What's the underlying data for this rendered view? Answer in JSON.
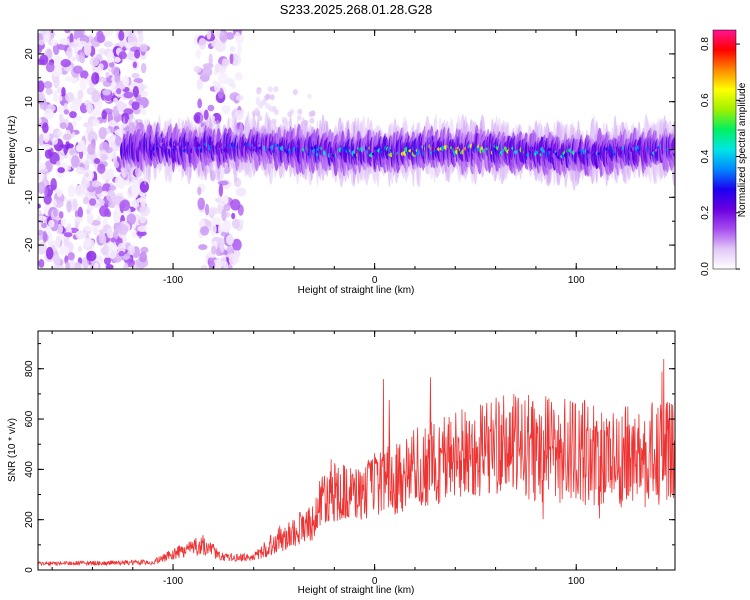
{
  "figure": {
    "title": "S233.2025.268.01.28.G28"
  },
  "chart_data": [
    {
      "type": "heatmap",
      "title": "S233.2025.268.01.28.G28",
      "xlabel": "Height of straight line (km)",
      "ylabel": "Frequency (Hz)",
      "xlim": [
        -167,
        149
      ],
      "ylim": [
        -25,
        25
      ],
      "x_ticks": [
        -100,
        0,
        100
      ],
      "x_tick_labels": [
        "-100",
        "0",
        "100"
      ],
      "y_ticks": [
        -20,
        -10,
        0,
        10,
        20
      ],
      "y_tick_labels": [
        "-20",
        "-10",
        "0",
        "10",
        "20"
      ],
      "ridge": {
        "description_points": [
          {
            "x": -120,
            "freq": 0,
            "amp": 0.25
          },
          {
            "x": -100,
            "freq": 0.5,
            "amp": 0.35
          },
          {
            "x": -60,
            "freq": 0.5,
            "amp": 0.4
          },
          {
            "x": -20,
            "freq": -0.5,
            "amp": 0.55
          },
          {
            "x": 0,
            "freq": -0.5,
            "amp": 0.6
          },
          {
            "x": 30,
            "freq": 0,
            "amp": 0.8
          },
          {
            "x": 60,
            "freq": 0,
            "amp": 0.65
          },
          {
            "x": 100,
            "freq": -1,
            "amp": 0.5
          },
          {
            "x": 140,
            "freq": 0,
            "amp": 0.4
          }
        ]
      },
      "colorbar": {
        "label": "Normalized spectral amplitude",
        "range": [
          0.0,
          0.85
        ],
        "ticks": [
          0.0,
          0.2,
          0.4,
          0.6,
          0.8
        ],
        "tick_labels": [
          "0.0",
          "0.2",
          "0.4",
          "0.6",
          "0.8"
        ],
        "colormap": [
          "#ffffff",
          "#e2c8f7",
          "#a64df0",
          "#6a00e0",
          "#1c00f0",
          "#0088ff",
          "#00e6e6",
          "#00f060",
          "#a0f000",
          "#ffff00",
          "#ff8800",
          "#ff0000",
          "#ff1493"
        ]
      }
    },
    {
      "type": "line",
      "xlabel": "Height of straight line (km)",
      "ylabel": "SNR (10 * v/v)",
      "xlim": [
        -167,
        149
      ],
      "ylim": [
        0,
        950
      ],
      "x_ticks": [
        -100,
        0,
        100
      ],
      "x_tick_labels": [
        "-100",
        "0",
        "100"
      ],
      "y_ticks": [
        0,
        200,
        400,
        600,
        800
      ],
      "y_tick_labels": [
        "0",
        "200",
        "400",
        "600",
        "800"
      ],
      "color": "#ee3333",
      "envelope": [
        {
          "x": -167,
          "mean": 25,
          "spread": 8
        },
        {
          "x": -110,
          "mean": 30,
          "spread": 10
        },
        {
          "x": -95,
          "mean": 80,
          "spread": 30
        },
        {
          "x": -85,
          "mean": 100,
          "spread": 40
        },
        {
          "x": -75,
          "mean": 50,
          "spread": 15
        },
        {
          "x": -60,
          "mean": 50,
          "spread": 15
        },
        {
          "x": -50,
          "mean": 110,
          "spread": 50
        },
        {
          "x": -30,
          "mean": 200,
          "spread": 80
        },
        {
          "x": -24,
          "mean": 320,
          "spread": 130
        },
        {
          "x": -10,
          "mean": 300,
          "spread": 110
        },
        {
          "x": 10,
          "mean": 370,
          "spread": 150
        },
        {
          "x": 30,
          "mean": 430,
          "spread": 180
        },
        {
          "x": 60,
          "mean": 500,
          "spread": 200
        },
        {
          "x": 90,
          "mean": 480,
          "spread": 220
        },
        {
          "x": 120,
          "mean": 450,
          "spread": 200
        },
        {
          "x": 149,
          "mean": 460,
          "spread": 220
        }
      ]
    }
  ]
}
